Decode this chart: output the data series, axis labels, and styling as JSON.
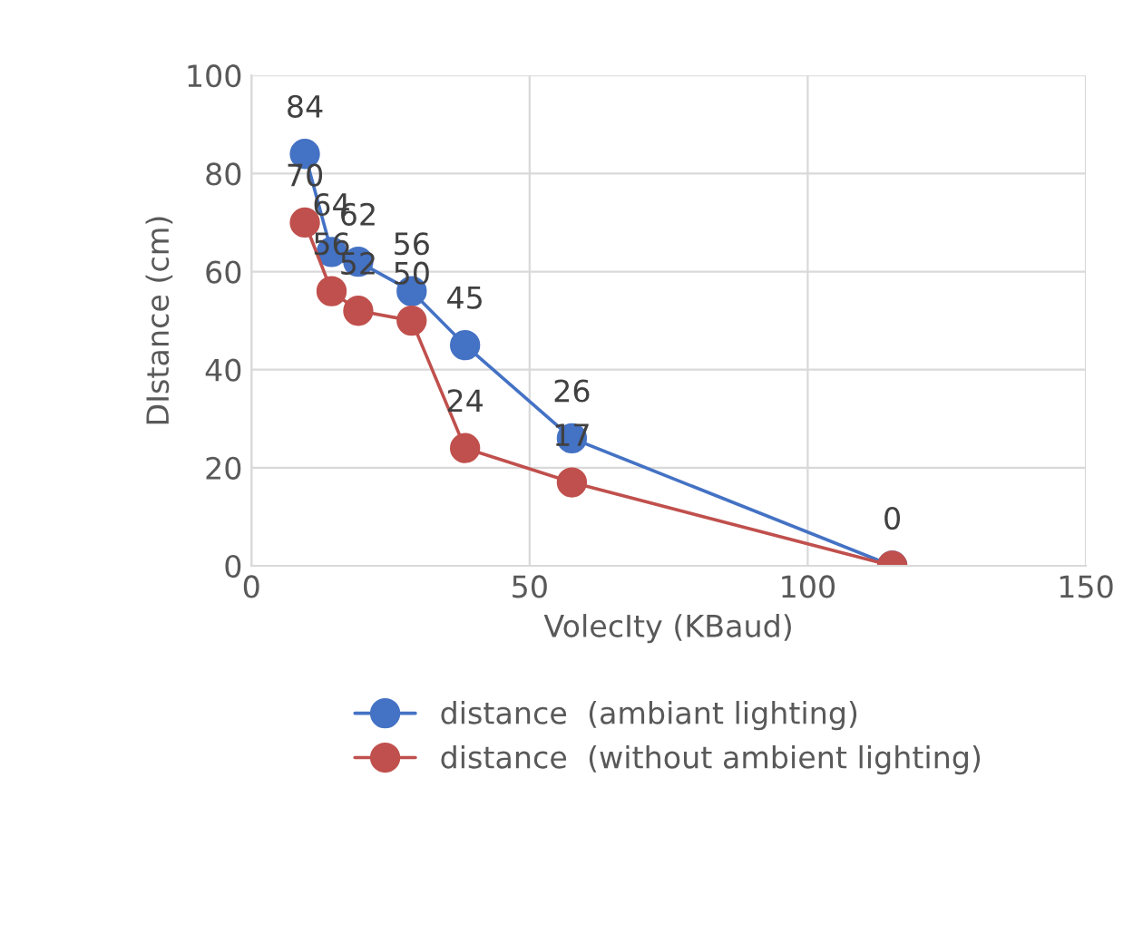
{
  "chart_data": {
    "type": "line",
    "xlabel": "VolecIty (KBaud)",
    "ylabel": "DIstance (cm)",
    "x": [
      9.6,
      14.4,
      19.2,
      28.8,
      38.4,
      57.6,
      115.2
    ],
    "series": [
      {
        "name": "distance  (ambiant lighting)",
        "color": "#4472c4",
        "values": [
          84,
          64,
          62,
          56,
          45,
          26,
          0
        ]
      },
      {
        "name": "distance  (without ambient lighting)",
        "color": "#c0504d",
        "values": [
          70,
          56,
          52,
          50,
          24,
          17,
          0
        ],
        "value_labels": [
          "70",
          "56",
          "52",
          "50",
          "24",
          "17",
          null
        ]
      }
    ],
    "xlim": [
      0,
      150
    ],
    "xticks": [
      0,
      50,
      100,
      150
    ],
    "ylim": [
      0,
      100
    ],
    "yticks": [
      0,
      20,
      40,
      60,
      80,
      100
    ],
    "grid": true,
    "legend": "bottom",
    "marker": "circle",
    "line_style": "solid",
    "data_labels": true
  }
}
